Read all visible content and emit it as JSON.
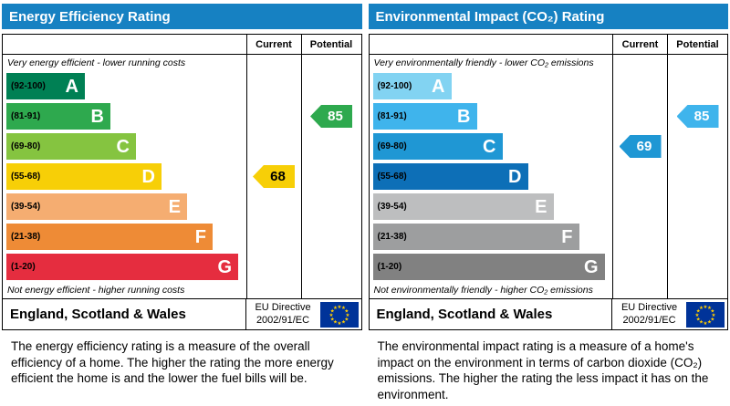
{
  "chart_data": [
    {
      "type": "bar",
      "title": "Energy Efficiency Rating",
      "categories": [
        "A",
        "B",
        "C",
        "D",
        "E",
        "F",
        "G"
      ],
      "ranges": [
        "(92-100)",
        "(81-91)",
        "(69-80)",
        "(55-68)",
        "(39-54)",
        "(21-38)",
        "(1-20)"
      ],
      "colors": [
        "#008054",
        "#2ea94e",
        "#85c440",
        "#f7cf07",
        "#f5ad71",
        "#ee8b36",
        "#e52d3f"
      ],
      "scale_min": 1,
      "scale_max": 100,
      "current": 68,
      "current_band": "D",
      "potential": 85,
      "potential_band": "B",
      "column_labels": [
        "Current",
        "Potential"
      ],
      "top_caption": "Very energy efficient - lower running costs",
      "bottom_caption": "Not energy efficient - higher running costs"
    },
    {
      "type": "bar",
      "title": "Environmental Impact (CO₂) Rating",
      "categories": [
        "A",
        "B",
        "C",
        "D",
        "E",
        "F",
        "G"
      ],
      "ranges": [
        "(92-100)",
        "(81-91)",
        "(69-80)",
        "(55-68)",
        "(39-54)",
        "(21-38)",
        "(1-20)"
      ],
      "colors": [
        "#82d3f2",
        "#3fb4ec",
        "#1f97d4",
        "#0d6fb7",
        "#bdbebf",
        "#9d9e9f",
        "#818181"
      ],
      "scale_min": 1,
      "scale_max": 100,
      "current": 69,
      "current_band": "C",
      "potential": 85,
      "potential_band": "B",
      "column_labels": [
        "Current",
        "Potential"
      ],
      "top_caption": "Very environmentally friendly - lower CO₂ emissions",
      "bottom_caption": "Not environmentally friendly - higher CO₂ emissions"
    }
  ],
  "colors": {
    "header_bg": "#1681c2",
    "header_text": "#ffffff",
    "eu_flag_bg": "#003399",
    "eu_star": "#ffcc00"
  },
  "panels": [
    {
      "title": "Energy Efficiency Rating",
      "col_current": "Current",
      "col_potential": "Potential",
      "top_label": "Very energy efficient - lower running costs",
      "bottom_label": "Not energy efficient - higher running costs",
      "bands": [
        {
          "range": "(92-100)",
          "letter": "A",
          "color": "#008054"
        },
        {
          "range": "(81-91)",
          "letter": "B",
          "color": "#2ea94e"
        },
        {
          "range": "(69-80)",
          "letter": "C",
          "color": "#85c440"
        },
        {
          "range": "(55-68)",
          "letter": "D",
          "color": "#f7cf07"
        },
        {
          "range": "(39-54)",
          "letter": "E",
          "color": "#f5ad71"
        },
        {
          "range": "(21-38)",
          "letter": "F",
          "color": "#ee8b36"
        },
        {
          "range": "(1-20)",
          "letter": "G",
          "color": "#e52d3f"
        }
      ],
      "current": {
        "value": "68",
        "row": 3,
        "color": "#f7cf07",
        "text": "#000000"
      },
      "potential": {
        "value": "85",
        "row": 1,
        "color": "#2ea94e",
        "text": "#ffffff"
      },
      "footer_region": "England, Scotland & Wales",
      "footer_directive_line1": "EU Directive",
      "footer_directive_line2": "2002/91/EC",
      "description": "The energy efficiency rating is a measure of the overall efficiency of a home. The higher the rating the more energy efficient the home is and the lower the fuel bills will be."
    },
    {
      "title": "Environmental Impact (CO₂) Rating",
      "col_current": "Current",
      "col_potential": "Potential",
      "top_label": "Very environmentally friendly - lower CO₂ emissions",
      "bottom_label": "Not environmentally friendly - higher CO₂ emissions",
      "bands": [
        {
          "range": "(92-100)",
          "letter": "A",
          "color": "#82d3f2"
        },
        {
          "range": "(81-91)",
          "letter": "B",
          "color": "#3fb4ec"
        },
        {
          "range": "(69-80)",
          "letter": "C",
          "color": "#1f97d4"
        },
        {
          "range": "(55-68)",
          "letter": "D",
          "color": "#0d6fb7"
        },
        {
          "range": "(39-54)",
          "letter": "E",
          "color": "#bdbebf"
        },
        {
          "range": "(21-38)",
          "letter": "F",
          "color": "#9d9e9f"
        },
        {
          "range": "(1-20)",
          "letter": "G",
          "color": "#818181"
        }
      ],
      "current": {
        "value": "69",
        "row": 2,
        "color": "#1f97d4",
        "text": "#ffffff"
      },
      "potential": {
        "value": "85",
        "row": 1,
        "color": "#3fb4ec",
        "text": "#ffffff"
      },
      "footer_region": "England, Scotland & Wales",
      "footer_directive_line1": "EU Directive",
      "footer_directive_line2": "2002/91/EC",
      "description": "The environmental impact rating is a measure of a home's impact on the environment in terms of carbon dioxide (CO₂) emissions. The higher the rating the less impact it has on the environment."
    }
  ]
}
